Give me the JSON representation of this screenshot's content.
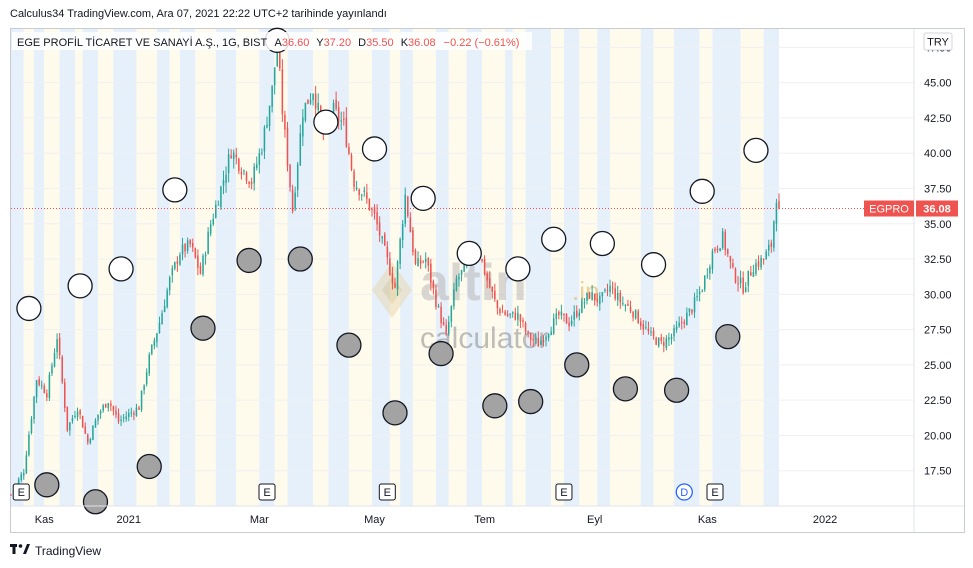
{
  "publication": "Calculus34 TradingView.com, Ara 07, 2021 22:22 UTC+2 tarihinde yayınlandı",
  "footer": {
    "brand": "TradingView",
    "logo_icon": "tradingview-logo-icon"
  },
  "currency_badge": "TRY",
  "watermark": {
    "brand": "altin",
    "suffix": ".in",
    "sub": "calculator"
  },
  "chart_data": {
    "type": "candlestick",
    "symbol_title": "EGE PROFİL TİCARET VE SANAYİ A.Ş., 1G, BIST",
    "ohlc": [
      {
        "label": "A",
        "value": "36.60"
      },
      {
        "label": "Y",
        "value": "37.20"
      },
      {
        "label": "D",
        "value": "35.50"
      },
      {
        "label": "K",
        "value": "36.08"
      }
    ],
    "change": "−0.22 (−0.61%)",
    "last_price": {
      "ticker": "EGPRO",
      "value": 36.08
    },
    "ylim": [
      15.0,
      48.8
    ],
    "y_ticks": [
      "47.50",
      "45.00",
      "42.50",
      "40.00",
      "37.50",
      "35.00",
      "32.50",
      "30.00",
      "27.50",
      "25.00",
      "22.50",
      "20.00",
      "17.50"
    ],
    "x_ticks": [
      {
        "label": "Kas",
        "t": 13
      },
      {
        "label": "2021",
        "t": 46
      },
      {
        "label": "Mar",
        "t": 97
      },
      {
        "label": "May",
        "t": 142
      },
      {
        "label": "Tem",
        "t": 185
      },
      {
        "label": "Eyl",
        "t": 228
      },
      {
        "label": "Kas",
        "t": 272
      },
      {
        "label": "2022",
        "t": 318
      }
    ],
    "events": [
      {
        "type": "E",
        "t": 4
      },
      {
        "type": "E",
        "t": 100
      },
      {
        "type": "E",
        "t": 147
      },
      {
        "type": "E",
        "t": 216
      },
      {
        "type": "D",
        "t": 263
      },
      {
        "type": "E",
        "t": 275
      }
    ],
    "close_path": [
      [
        0,
        15.8
      ],
      [
        5,
        17.5
      ],
      [
        10,
        24
      ],
      [
        14,
        23
      ],
      [
        18,
        27
      ],
      [
        22,
        20.5
      ],
      [
        26,
        22
      ],
      [
        30,
        19.5
      ],
      [
        34,
        21.5
      ],
      [
        38,
        22.5
      ],
      [
        42,
        21
      ],
      [
        46,
        21.5
      ],
      [
        50,
        22
      ],
      [
        54,
        25.5
      ],
      [
        58,
        28
      ],
      [
        62,
        31
      ],
      [
        66,
        33
      ],
      [
        70,
        33.5
      ],
      [
        74,
        31.5
      ],
      [
        78,
        35
      ],
      [
        82,
        37.5
      ],
      [
        86,
        40.2
      ],
      [
        90,
        39
      ],
      [
        94,
        38
      ],
      [
        98,
        40.5
      ],
      [
        102,
        44.5
      ],
      [
        104,
        47.8
      ],
      [
        106,
        43
      ],
      [
        110,
        36
      ],
      [
        114,
        43
      ],
      [
        118,
        44.5
      ],
      [
        122,
        41.5
      ],
      [
        126,
        43
      ],
      [
        130,
        42
      ],
      [
        134,
        38
      ],
      [
        138,
        37
      ],
      [
        142,
        35.5
      ],
      [
        146,
        33
      ],
      [
        150,
        30.5
      ],
      [
        154,
        37
      ],
      [
        158,
        32
      ],
      [
        162,
        32.5
      ],
      [
        166,
        29.5
      ],
      [
        170,
        27
      ],
      [
        174,
        31
      ],
      [
        178,
        32
      ],
      [
        182,
        33.5
      ],
      [
        186,
        31
      ],
      [
        190,
        29
      ],
      [
        194,
        28.5
      ],
      [
        198,
        28.5
      ],
      [
        202,
        27
      ],
      [
        206,
        26.5
      ],
      [
        210,
        27.5
      ],
      [
        214,
        28.5
      ],
      [
        218,
        28
      ],
      [
        222,
        29
      ],
      [
        226,
        30
      ],
      [
        230,
        29.5
      ],
      [
        234,
        30.5
      ],
      [
        238,
        29.5
      ],
      [
        242,
        29
      ],
      [
        246,
        28
      ],
      [
        250,
        27
      ],
      [
        254,
        26.5
      ],
      [
        258,
        27
      ],
      [
        262,
        28
      ],
      [
        266,
        29
      ],
      [
        270,
        30.5
      ],
      [
        274,
        33
      ],
      [
        278,
        34
      ],
      [
        282,
        31.5
      ],
      [
        286,
        30.5
      ],
      [
        290,
        32
      ],
      [
        294,
        32.5
      ],
      [
        297,
        33.5
      ],
      [
        299,
        37
      ],
      [
        300,
        36.08
      ]
    ],
    "circle_markers": [
      {
        "t": 7,
        "y": 29,
        "fill": "open"
      },
      {
        "t": 14,
        "y": 16.5,
        "fill": "filled"
      },
      {
        "t": 27,
        "y": 30.6,
        "fill": "open"
      },
      {
        "t": 33,
        "y": 15.3,
        "fill": "filled"
      },
      {
        "t": 43,
        "y": 31.8,
        "fill": "open"
      },
      {
        "t": 54,
        "y": 17.8,
        "fill": "filled"
      },
      {
        "t": 64,
        "y": 37.4,
        "fill": "open"
      },
      {
        "t": 75,
        "y": 27.6,
        "fill": "filled"
      },
      {
        "t": 93,
        "y": 32.4,
        "fill": "filled"
      },
      {
        "t": 104,
        "y": 48.0,
        "fill": "open"
      },
      {
        "t": 113,
        "y": 32.5,
        "fill": "filled"
      },
      {
        "t": 123,
        "y": 42.2,
        "fill": "open"
      },
      {
        "t": 132,
        "y": 26.4,
        "fill": "filled"
      },
      {
        "t": 142,
        "y": 40.3,
        "fill": "open"
      },
      {
        "t": 150,
        "y": 21.6,
        "fill": "filled"
      },
      {
        "t": 161,
        "y": 36.8,
        "fill": "open"
      },
      {
        "t": 168,
        "y": 25.8,
        "fill": "filled"
      },
      {
        "t": 179,
        "y": 32.9,
        "fill": "open"
      },
      {
        "t": 189,
        "y": 22.1,
        "fill": "filled"
      },
      {
        "t": 198,
        "y": 31.8,
        "fill": "open"
      },
      {
        "t": 203,
        "y": 22.4,
        "fill": "filled"
      },
      {
        "t": 212,
        "y": 33.9,
        "fill": "open"
      },
      {
        "t": 221,
        "y": 25.0,
        "fill": "filled"
      },
      {
        "t": 231,
        "y": 33.6,
        "fill": "open"
      },
      {
        "t": 240,
        "y": 23.3,
        "fill": "filled"
      },
      {
        "t": 251,
        "y": 32.1,
        "fill": "open"
      },
      {
        "t": 260,
        "y": 23.2,
        "fill": "filled"
      },
      {
        "t": 270,
        "y": 37.3,
        "fill": "open"
      },
      {
        "t": 280,
        "y": 27.0,
        "fill": "filled"
      },
      {
        "t": 291,
        "y": 40.2,
        "fill": "open"
      }
    ],
    "background_bands": [
      {
        "t0": 0,
        "t1": 5,
        "color": "blue"
      },
      {
        "t0": 5,
        "t1": 9,
        "color": "cream"
      },
      {
        "t0": 9,
        "t1": 13,
        "color": "blue"
      },
      {
        "t0": 13,
        "t1": 19,
        "color": "cream"
      },
      {
        "t0": 19,
        "t1": 25,
        "color": "blue"
      },
      {
        "t0": 25,
        "t1": 28,
        "color": "cream"
      },
      {
        "t0": 28,
        "t1": 34,
        "color": "blue"
      },
      {
        "t0": 34,
        "t1": 40,
        "color": "cream"
      },
      {
        "t0": 40,
        "t1": 49,
        "color": "blue"
      },
      {
        "t0": 49,
        "t1": 57,
        "color": "cream"
      },
      {
        "t0": 57,
        "t1": 62,
        "color": "blue"
      },
      {
        "t0": 62,
        "t1": 66,
        "color": "cream"
      },
      {
        "t0": 66,
        "t1": 72,
        "color": "blue"
      },
      {
        "t0": 72,
        "t1": 80,
        "color": "cream"
      },
      {
        "t0": 80,
        "t1": 88,
        "color": "blue"
      },
      {
        "t0": 88,
        "t1": 97,
        "color": "cream"
      },
      {
        "t0": 97,
        "t1": 103,
        "color": "blue"
      },
      {
        "t0": 103,
        "t1": 108,
        "color": "cream"
      },
      {
        "t0": 108,
        "t1": 118,
        "color": "blue"
      },
      {
        "t0": 118,
        "t1": 124,
        "color": "cream"
      },
      {
        "t0": 124,
        "t1": 132,
        "color": "blue"
      },
      {
        "t0": 132,
        "t1": 141,
        "color": "cream"
      },
      {
        "t0": 141,
        "t1": 148,
        "color": "blue"
      },
      {
        "t0": 148,
        "t1": 152,
        "color": "cream"
      },
      {
        "t0": 152,
        "t1": 157,
        "color": "blue"
      },
      {
        "t0": 157,
        "t1": 166,
        "color": "cream"
      },
      {
        "t0": 166,
        "t1": 171,
        "color": "blue"
      },
      {
        "t0": 171,
        "t1": 178,
        "color": "cream"
      },
      {
        "t0": 178,
        "t1": 184,
        "color": "blue"
      },
      {
        "t0": 184,
        "t1": 193,
        "color": "cream"
      },
      {
        "t0": 193,
        "t1": 196,
        "color": "blue"
      },
      {
        "t0": 196,
        "t1": 201,
        "color": "cream"
      },
      {
        "t0": 201,
        "t1": 211,
        "color": "blue"
      },
      {
        "t0": 211,
        "t1": 216,
        "color": "cream"
      },
      {
        "t0": 216,
        "t1": 222,
        "color": "blue"
      },
      {
        "t0": 222,
        "t1": 229,
        "color": "cream"
      },
      {
        "t0": 229,
        "t1": 234,
        "color": "blue"
      },
      {
        "t0": 234,
        "t1": 246,
        "color": "cream"
      },
      {
        "t0": 246,
        "t1": 251,
        "color": "blue"
      },
      {
        "t0": 251,
        "t1": 259,
        "color": "cream"
      },
      {
        "t0": 259,
        "t1": 269,
        "color": "blue"
      },
      {
        "t0": 269,
        "t1": 274,
        "color": "cream"
      },
      {
        "t0": 274,
        "t1": 285,
        "color": "blue"
      },
      {
        "t0": 285,
        "t1": 294,
        "color": "cream"
      },
      {
        "t0": 294,
        "t1": 300,
        "color": "blue"
      }
    ],
    "colors": {
      "up": "#26a69a",
      "down": "#ef5350",
      "band_blue": "#e6f0fb",
      "band_cream": "#fffbec",
      "price_label": "#ef5350",
      "marker_filled": "#a3a3a3",
      "marker_stroke": "#131722",
      "grid": "#eef0f3",
      "axis_text": "#131722",
      "title_text": "#131722",
      "ohlc_value": "#ef5350"
    }
  }
}
